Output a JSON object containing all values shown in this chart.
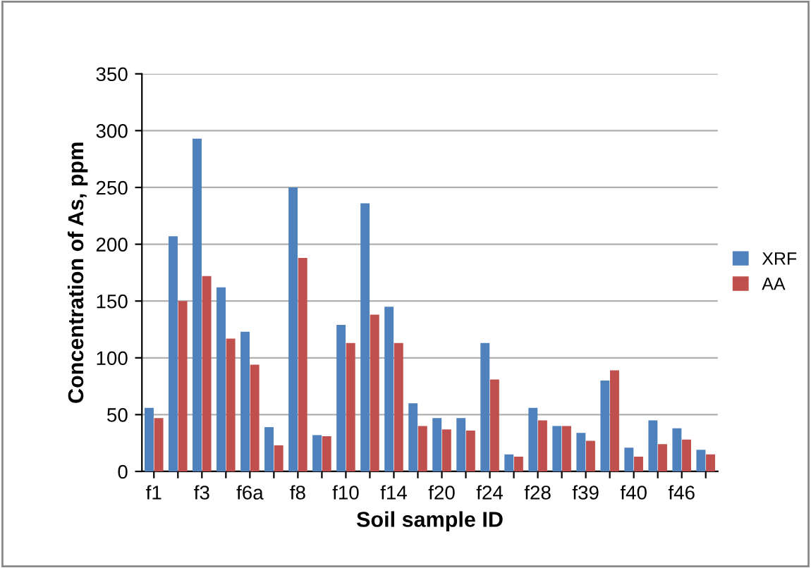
{
  "chart_data": {
    "type": "bar",
    "xlabel": "Soil sample ID",
    "ylabel": "Concentration of As, ppm",
    "categories": [
      "f1",
      null,
      "f3",
      null,
      "f6a",
      null,
      "f8",
      null,
      "f10",
      null,
      "f14",
      null,
      "f20",
      null,
      "f24",
      null,
      "f28",
      null,
      "f39",
      null,
      "f40",
      null,
      "f46",
      null
    ],
    "series": [
      {
        "name": "XRF",
        "color": "#4f81bd",
        "values": [
          56,
          207,
          293,
          162,
          123,
          39,
          250,
          32,
          129,
          236,
          145,
          60,
          47,
          47,
          113,
          15,
          56,
          40,
          34,
          80,
          21,
          45,
          38,
          19
        ]
      },
      {
        "name": "AA",
        "color": "#c0504d",
        "values": [
          47,
          150,
          172,
          117,
          94,
          23,
          188,
          31,
          113,
          138,
          113,
          40,
          37,
          36,
          81,
          13,
          45,
          40,
          27,
          89,
          13,
          24,
          28,
          15
        ]
      }
    ],
    "ylim": [
      0,
      350
    ],
    "yticks": [
      0,
      50,
      100,
      150,
      200,
      250,
      300,
      350
    ],
    "grid": "y",
    "legend": "right"
  }
}
